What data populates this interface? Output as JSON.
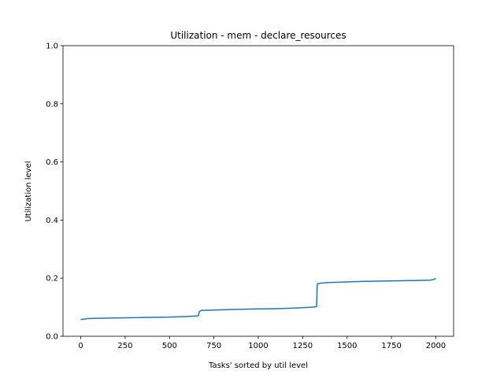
{
  "chart_data": {
    "type": "line",
    "title": "Utilization - mem - declare_resources",
    "xlabel": "Tasks' sorted by util level",
    "ylabel": "Utilization level",
    "xlim": [
      -100,
      2100
    ],
    "ylim": [
      0,
      1.0
    ],
    "xticks": [
      0,
      250,
      500,
      750,
      1000,
      1250,
      1500,
      1750,
      2000
    ],
    "yticks": [
      0.0,
      0.2,
      0.4,
      0.6,
      0.8,
      1.0
    ],
    "xtick_labels": [
      "0",
      "250",
      "500",
      "750",
      "1000",
      "1250",
      "1500",
      "1750",
      "2000"
    ],
    "ytick_labels": [
      "0.0",
      "0.2",
      "0.4",
      "0.6",
      "0.8",
      "1.0"
    ],
    "grid": false,
    "series": [
      {
        "color": "#1f77b4",
        "points": [
          [
            0,
            0.057
          ],
          [
            15,
            0.059
          ],
          [
            40,
            0.061
          ],
          [
            100,
            0.062
          ],
          [
            200,
            0.063
          ],
          [
            300,
            0.064
          ],
          [
            400,
            0.065
          ],
          [
            500,
            0.066
          ],
          [
            600,
            0.068
          ],
          [
            660,
            0.07
          ],
          [
            664,
            0.074
          ],
          [
            668,
            0.085
          ],
          [
            680,
            0.089
          ],
          [
            750,
            0.09
          ],
          [
            850,
            0.092
          ],
          [
            1000,
            0.094
          ],
          [
            1100,
            0.095
          ],
          [
            1200,
            0.097
          ],
          [
            1300,
            0.1
          ],
          [
            1328,
            0.102
          ],
          [
            1330,
            0.14
          ],
          [
            1332,
            0.18
          ],
          [
            1350,
            0.183
          ],
          [
            1400,
            0.185
          ],
          [
            1500,
            0.187
          ],
          [
            1600,
            0.189
          ],
          [
            1700,
            0.19
          ],
          [
            1800,
            0.191
          ],
          [
            1900,
            0.192
          ],
          [
            1970,
            0.193
          ],
          [
            1990,
            0.196
          ],
          [
            2000,
            0.199
          ]
        ]
      }
    ]
  }
}
